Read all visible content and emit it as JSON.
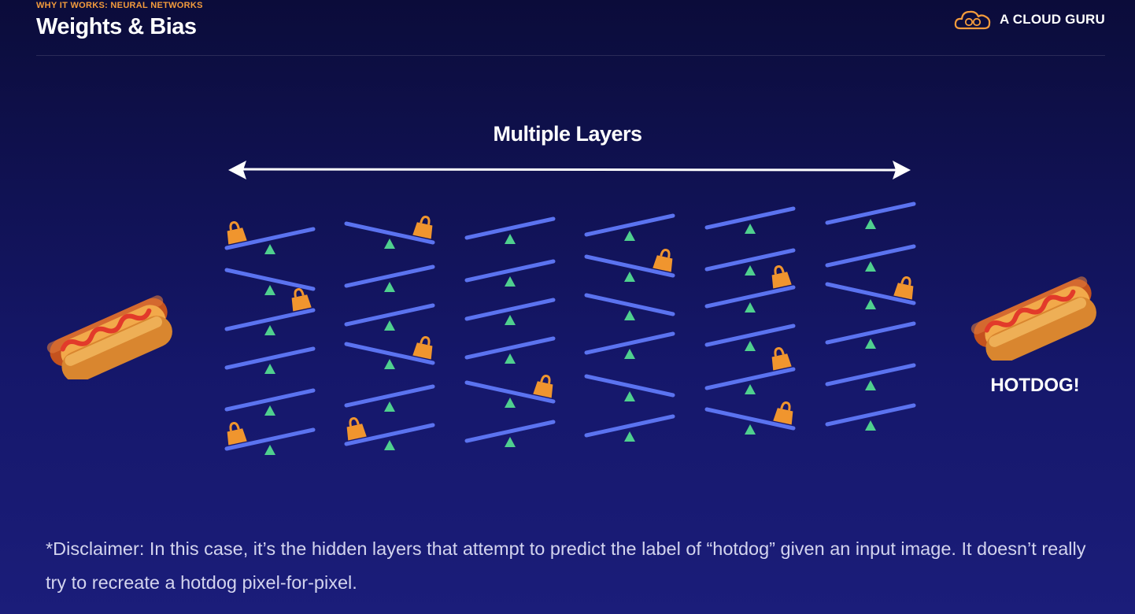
{
  "header": {
    "kicker": "WHY IT WORKS: NEURAL NETWORKS",
    "title": "Weights & Bias",
    "brand": "A CLOUD GURU"
  },
  "diagram": {
    "heading": "Multiple Layers",
    "output_label": "HOTDOG!",
    "input_icon": "hotdog-image",
    "output_icon": "hotdog-image",
    "colors": {
      "beam": "#5b73f0",
      "fulcrum": "#4fd08f",
      "weight": "#f0952e",
      "accent": "#f39b3c"
    }
  },
  "disclaimer": "*Disclaimer: In this case, it’s the hidden layers that attempt to predict the label of “hotdog” given an input image. It doesn’t really try to recreate a hotdog pixel-for-pixel."
}
